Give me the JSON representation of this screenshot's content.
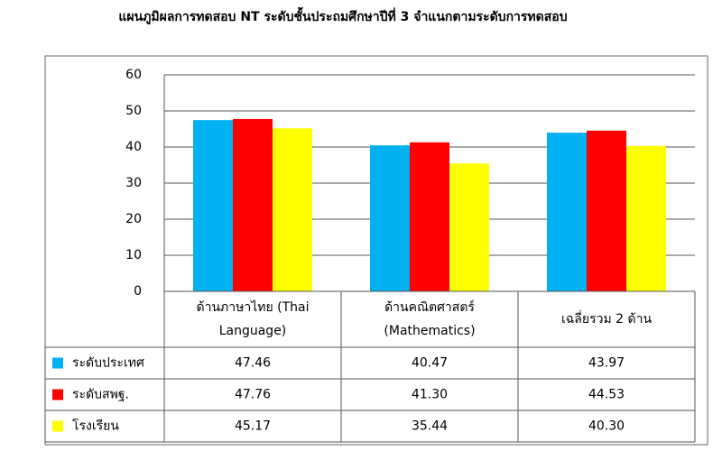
{
  "chart_data": {
    "type": "bar",
    "title": "แผนภูมิผลการทดสอบ NT ระดับชั้นประถมศึกษาปีที่ 3 จำแนกตามระดับการทดสอบ",
    "categories": [
      "ด้านภาษาไทย (Thai Language)",
      "ด้านคณิตศาสตร์ (Mathematics)",
      "เฉลี่ยรวม 2 ด้าน"
    ],
    "series": [
      {
        "name": "ระดับประเทศ",
        "color": "#00b0f0",
        "values": [
          47.46,
          40.47,
          43.97
        ]
      },
      {
        "name": "ระดับสพฐ.",
        "color": "#ff0000",
        "values": [
          47.76,
          41.3,
          44.53
        ],
        "value_labels": [
          "47.76",
          "41.30",
          "44.53"
        ]
      },
      {
        "name": "โรงเรียน",
        "color": "#ffff00",
        "values": [
          45.17,
          35.44,
          40.3
        ],
        "value_labels": [
          "45.17",
          "35.44",
          "40.30"
        ]
      }
    ],
    "ylim": [
      0,
      60
    ],
    "yticks": [
      0,
      10,
      20,
      30,
      40,
      50,
      60
    ],
    "grid": true
  }
}
